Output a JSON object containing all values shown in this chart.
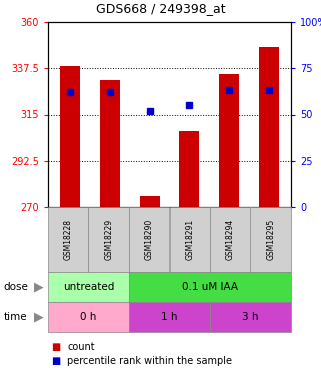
{
  "title": "GDS668 / 249398_at",
  "samples": [
    "GSM18228",
    "GSM18229",
    "GSM18290",
    "GSM18291",
    "GSM18294",
    "GSM18295"
  ],
  "bar_values": [
    338.5,
    332.0,
    275.5,
    307.0,
    334.5,
    348.0
  ],
  "bar_bottom": 270,
  "percentile_values": [
    62,
    62,
    52,
    55,
    63,
    63
  ],
  "bar_color": "#cc0000",
  "blue_color": "#0000cc",
  "ylim_left": [
    270,
    360
  ],
  "ylim_right": [
    0,
    100
  ],
  "yticks_left": [
    270,
    292.5,
    315,
    337.5,
    360
  ],
  "yticks_right": [
    0,
    25,
    50,
    75,
    100
  ],
  "ytick_labels_left": [
    "270",
    "292.5",
    "315",
    "337.5",
    "360"
  ],
  "ytick_labels_right": [
    "0",
    "25",
    "50",
    "75",
    "100%"
  ],
  "dose_data": [
    {
      "text": "untreated",
      "start": 0,
      "end": 1,
      "color": "#aaffaa"
    },
    {
      "text": "0.1 uM IAA",
      "start": 2,
      "end": 5,
      "color": "#44dd44"
    }
  ],
  "time_data": [
    {
      "text": "0 h",
      "start": 0,
      "end": 1,
      "color": "#ffaacc"
    },
    {
      "text": "1 h",
      "start": 2,
      "end": 3,
      "color": "#cc44cc"
    },
    {
      "text": "3 h",
      "start": 4,
      "end": 5,
      "color": "#cc44cc"
    }
  ],
  "dose_row_label": "dose",
  "time_row_label": "time",
  "legend_count_color": "#cc0000",
  "legend_pct_color": "#0000cc",
  "bg_color": "#ffffff",
  "bar_width": 0.5
}
